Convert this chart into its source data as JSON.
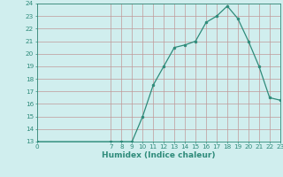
{
  "title": "",
  "xlabel": "Humidex (Indice chaleur)",
  "x_values": [
    0,
    7,
    8,
    9,
    10,
    11,
    12,
    13,
    14,
    15,
    16,
    17,
    18,
    19,
    20,
    21,
    22,
    23
  ],
  "y_values": [
    13,
    13,
    13,
    13,
    15,
    17.5,
    19,
    20.5,
    20.7,
    21,
    22.5,
    23,
    23.8,
    22.8,
    21,
    19,
    16.5,
    16.3
  ],
  "ylim": [
    13,
    24
  ],
  "xlim": [
    0,
    23
  ],
  "yticks": [
    13,
    14,
    15,
    16,
    17,
    18,
    19,
    20,
    21,
    22,
    23,
    24
  ],
  "xticks": [
    0,
    7,
    8,
    9,
    10,
    11,
    12,
    13,
    14,
    15,
    16,
    17,
    18,
    19,
    20,
    21,
    22,
    23
  ],
  "line_color": "#2e8b7a",
  "marker_color": "#2e8b7a",
  "bg_color": "#d0eeee",
  "grid_color": "#c09898",
  "tick_label_fontsize": 5.2,
  "xlabel_fontsize": 6.5,
  "marker_size": 2.0,
  "line_width": 0.9
}
